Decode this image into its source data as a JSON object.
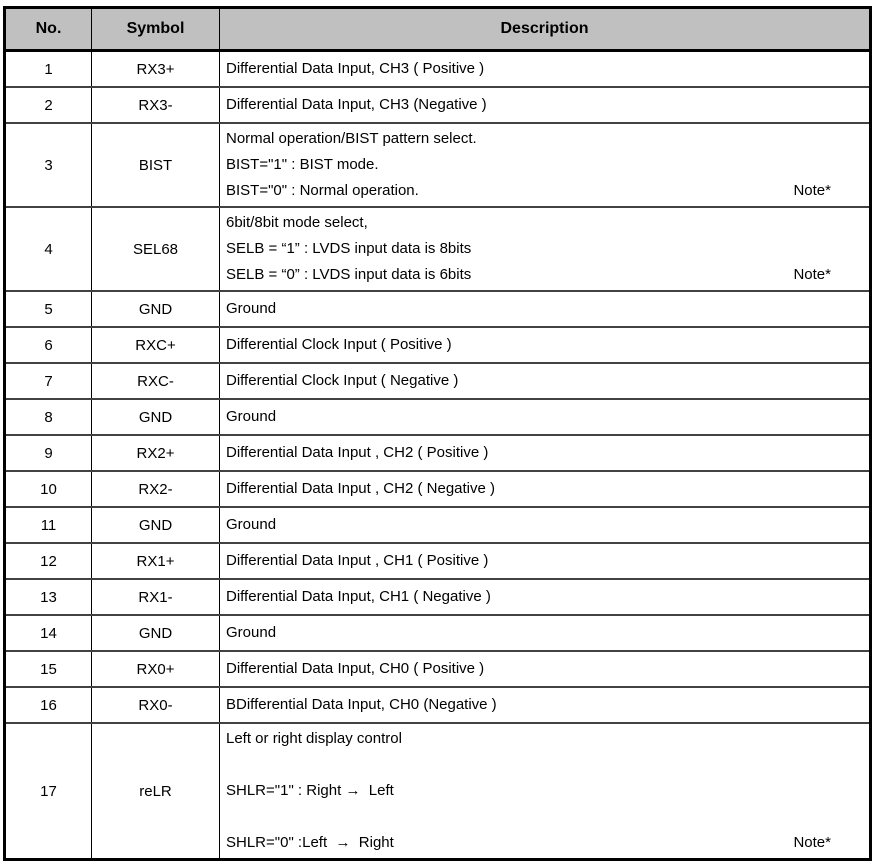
{
  "table": {
    "note_label": "Note*",
    "header_bg": "#c0c0c0",
    "border_color": "#000000",
    "columns": [
      {
        "key": "no",
        "label": "No."
      },
      {
        "key": "symbol",
        "label": "Symbol"
      },
      {
        "key": "description",
        "label": "Description"
      }
    ],
    "rows": [
      {
        "no": "1",
        "symbol": "RX3+",
        "lines": [
          "Differential Data Input, CH3 ( Positive )"
        ],
        "note": false
      },
      {
        "no": "2",
        "symbol": "RX3-",
        "lines": [
          "Differential Data Input, CH3 (Negative )"
        ],
        "note": false
      },
      {
        "no": "3",
        "symbol": "BIST",
        "lines": [
          "Normal operation/BIST pattern select.",
          "BIST=\"1\" : BIST mode.",
          "BIST=\"0\" : Normal operation."
        ],
        "note": true
      },
      {
        "no": "4",
        "symbol": "SEL68",
        "lines": [
          "6bit/8bit mode select,",
          "SELB = “1” : LVDS input data is 8bits",
          "SELB = “0” : LVDS input data is 6bits"
        ],
        "note": true
      },
      {
        "no": "5",
        "symbol": "GND",
        "lines": [
          "Ground"
        ],
        "note": false
      },
      {
        "no": "6",
        "symbol": "RXC+",
        "lines": [
          "Differential Clock Input ( Positive )"
        ],
        "note": false
      },
      {
        "no": "7",
        "symbol": "RXC-",
        "lines": [
          "Differential Clock Input ( Negative )"
        ],
        "note": false
      },
      {
        "no": "8",
        "symbol": "GND",
        "lines": [
          "Ground"
        ],
        "note": false
      },
      {
        "no": "9",
        "symbol": "RX2+",
        "lines": [
          "Differential Data Input , CH2 ( Positive )"
        ],
        "note": false
      },
      {
        "no": "10",
        "symbol": "RX2-",
        "lines": [
          "Differential Data Input , CH2 ( Negative )"
        ],
        "note": false
      },
      {
        "no": "11",
        "symbol": "GND",
        "lines": [
          "Ground"
        ],
        "note": false
      },
      {
        "no": "12",
        "symbol": "RX1+",
        "lines": [
          "Differential Data Input , CH1 ( Positive )"
        ],
        "note": false
      },
      {
        "no": "13",
        "symbol": "RX1-",
        "lines": [
          "Differential Data Input, CH1 ( Negative )"
        ],
        "note": false
      },
      {
        "no": "14",
        "symbol": "GND",
        "lines": [
          "Ground"
        ],
        "note": false
      },
      {
        "no": "15",
        "symbol": "RX0+",
        "lines": [
          "Differential Data Input, CH0 ( Positive )"
        ],
        "note": false
      },
      {
        "no": "16",
        "symbol": "RX0-",
        "lines": [
          "BDifferential Data Input, CH0 (Negative )"
        ],
        "note": false
      },
      {
        "no": "17",
        "symbol": "reLR",
        "lines": [
          "Left or right display control",
          "",
          "SHLR=\"1\" : Right →  Left",
          "",
          "SHLR=\"0\" :Left  →  Right"
        ],
        "note": true
      }
    ]
  }
}
